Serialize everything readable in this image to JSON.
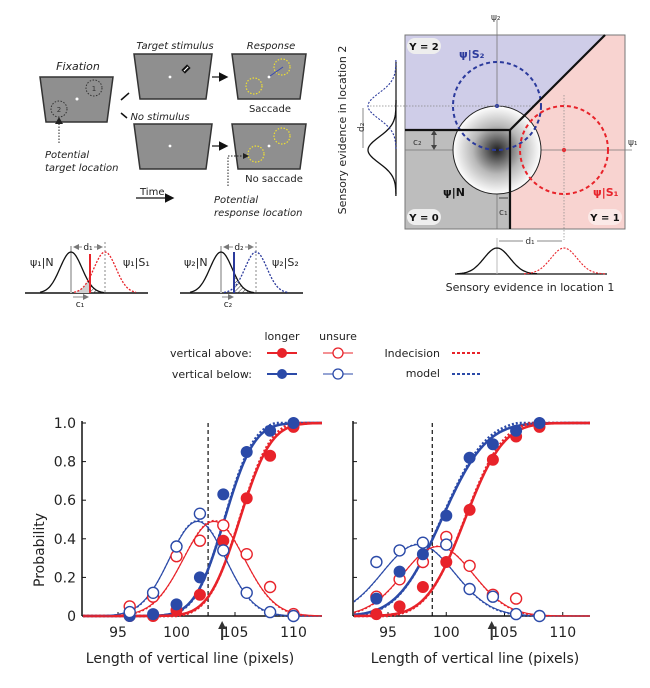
{
  "panel_a": {
    "fixation_label": "Fixation",
    "target_stimulus_label": "Target stimulus",
    "no_stimulus_label": "No stimulus",
    "response_label": "Response",
    "saccade_label": "Saccade",
    "no_saccade_label": "No saccade",
    "potential_target_label_1": "Potential",
    "potential_target_label_2": "target location",
    "potential_response_label_1": "Potential",
    "potential_response_label_2": "response location",
    "time_label": "Time",
    "location_1": "1",
    "location_2": "2"
  },
  "panel_b": {
    "left": {
      "noise_label": "ψ₁|N",
      "signal_label": "ψ₁|S₁",
      "d_label": "d₁",
      "c_label": "c₁",
      "criterion_color": "#e8232a"
    },
    "right": {
      "noise_label": "ψ₂|N",
      "signal_label": "ψ₂|S₂",
      "d_label": "d₂",
      "c_label": "c₂",
      "criterion_color": "#2b3a9c"
    }
  },
  "panel_c": {
    "psi2_axis": "ψ₂",
    "psi1_axis": "ψ₁",
    "y2_label": "Y = 2",
    "y1_label": "Y = 1",
    "y0_label": "Y = 0",
    "s2_label": "ψ|S₂",
    "s1_label": "ψ|S₁",
    "n_label": "ψ|N",
    "c1_label": "c₁",
    "c2_label": "c₂",
    "d1_label": "d₁",
    "d2_label": "d₂",
    "xlabel": "Sensory evidence in location 1",
    "ylabel": "Sensory evidence in location 2",
    "colors": {
      "y2_region": "#cfcde8",
      "y1_region": "#f8d3d0",
      "y0_region": "#bdbdbd",
      "s2": "#2b3a9c",
      "s1": "#e8232a"
    }
  },
  "legend": {
    "col_longer": "longer",
    "col_unsure": "unsure",
    "row_above": "vertical above:",
    "row_below": "vertical below:",
    "model_label_1": "Indecision",
    "model_label_2": "model",
    "colors": {
      "above": "#e8232a",
      "below": "#2b4aa8"
    }
  },
  "chart_data": [
    {
      "type": "scatter",
      "title": "",
      "xlabel": "Length of vertical line (pixels)",
      "ylabel": "Probability",
      "xlim": [
        92,
        112
      ],
      "ylim": [
        0,
        1
      ],
      "xticks": [
        "95",
        "100",
        "105",
        "110"
      ],
      "xtick_values": [
        95,
        100,
        105,
        110
      ],
      "yticks": [
        "0",
        "0.2",
        "0.4",
        "0.6",
        "0.8",
        "1.0"
      ],
      "ytick_values": [
        0,
        0.2,
        0.4,
        0.6,
        0.8,
        1.0
      ],
      "reference_line_x": 102.7,
      "arrow_x": 103.9,
      "series": [
        {
          "name": "vertical above — longer",
          "color": "#e8232a",
          "filled": true,
          "x": [
            96,
            98,
            100,
            102,
            104,
            106,
            108,
            110
          ],
          "y": [
            0.0,
            0.0,
            0.03,
            0.11,
            0.39,
            0.61,
            0.83,
            0.98
          ]
        },
        {
          "name": "vertical above — unsure",
          "color": "#e8232a",
          "filled": false,
          "x": [
            96,
            98,
            100,
            102,
            104,
            106,
            108,
            110
          ],
          "y": [
            0.05,
            0.1,
            0.31,
            0.39,
            0.47,
            0.32,
            0.15,
            0.01
          ]
        },
        {
          "name": "vertical below — longer",
          "color": "#2b4aa8",
          "filled": true,
          "x": [
            96,
            98,
            100,
            102,
            104,
            106,
            108,
            110
          ],
          "y": [
            0.0,
            0.01,
            0.06,
            0.2,
            0.63,
            0.85,
            0.96,
            1.0
          ]
        },
        {
          "name": "vertical below — unsure",
          "color": "#2b4aa8",
          "filled": false,
          "x": [
            96,
            98,
            100,
            102,
            104,
            106,
            108,
            110
          ],
          "y": [
            0.02,
            0.12,
            0.36,
            0.53,
            0.34,
            0.12,
            0.02,
            0.0
          ]
        }
      ],
      "fits": {
        "above_longer": {
          "mu": 105.4,
          "sigma": 2.1
        },
        "below_longer": {
          "mu": 104.1,
          "sigma": 2.0
        },
        "above_unsure": {
          "peak": 0.49,
          "center": 103.2,
          "width": 2.6
        },
        "below_unsure": {
          "peak": 0.49,
          "center": 101.8,
          "width": 2.4
        }
      }
    },
    {
      "type": "scatter",
      "title": "",
      "xlabel": "Length of vertical line (pixels)",
      "ylabel": "",
      "xlim": [
        92,
        112
      ],
      "ylim": [
        0,
        1
      ],
      "xticks": [
        "95",
        "100",
        "105",
        "110"
      ],
      "xtick_values": [
        95,
        100,
        105,
        110
      ],
      "reference_line_x": 98.8,
      "arrow_x": 103.9,
      "series": [
        {
          "name": "vertical above — longer",
          "color": "#e8232a",
          "filled": true,
          "x": [
            94,
            96,
            98,
            100,
            102,
            104,
            106,
            108
          ],
          "y": [
            0.01,
            0.05,
            0.15,
            0.28,
            0.55,
            0.81,
            0.93,
            0.98
          ]
        },
        {
          "name": "vertical above — unsure",
          "color": "#e8232a",
          "filled": false,
          "x": [
            94,
            96,
            98,
            100,
            102,
            104,
            106
          ],
          "y": [
            0.1,
            0.19,
            0.28,
            0.41,
            0.26,
            0.11,
            0.09
          ]
        },
        {
          "name": "vertical below — longer",
          "color": "#2b4aa8",
          "filled": true,
          "x": [
            94,
            96,
            98,
            100,
            102,
            104,
            106,
            108
          ],
          "y": [
            0.09,
            0.23,
            0.32,
            0.52,
            0.82,
            0.89,
            0.96,
            1.0
          ]
        },
        {
          "name": "vertical below — unsure",
          "color": "#2b4aa8",
          "filled": false,
          "x": [
            94,
            96,
            98,
            100,
            102,
            104,
            106,
            108
          ],
          "y": [
            0.28,
            0.34,
            0.38,
            0.37,
            0.14,
            0.1,
            0.01,
            0.0
          ]
        }
      ],
      "fits": {
        "above_longer": {
          "mu": 101.6,
          "sigma": 2.6
        },
        "below_longer": {
          "mu": 99.6,
          "sigma": 3.0
        },
        "above_unsure": {
          "peak": 0.36,
          "center": 99.3,
          "width": 3.0
        },
        "below_unsure": {
          "peak": 0.37,
          "center": 97.6,
          "width": 3.1
        }
      }
    }
  ]
}
